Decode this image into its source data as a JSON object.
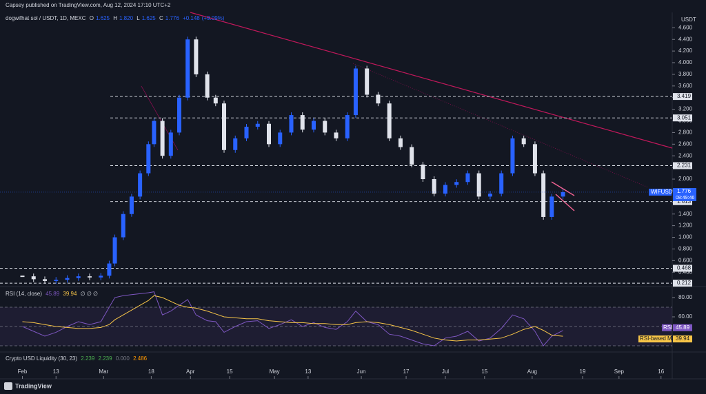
{
  "header": {
    "published": "Capsey published on TradingView.com, Aug 12, 2024 17:10 UTC+2"
  },
  "chart_data": [
    {
      "type": "candlestick",
      "title": "dogwifhat sol / USDT, 1D, MEXC",
      "currency": "USDT",
      "ohlc": {
        "names": [
          "O",
          "H",
          "L",
          "C"
        ],
        "values": [
          1.625,
          1.82,
          1.625,
          1.776
        ],
        "value_labels": [
          "1.625",
          "1.820",
          "1.625",
          "1.776"
        ]
      },
      "change": {
        "value": 0.148,
        "label": "+0.148"
      },
      "change_pct": {
        "value": 9.09,
        "label": "(+9.09%)"
      },
      "last": {
        "symbol": "WIFUSDT",
        "value": 1.776,
        "countdown": "08:49:46"
      },
      "up_color": "#2962ff",
      "down_color": "#e0e3eb",
      "x": [
        "2024-02-01",
        "2024-02-05",
        "2024-02-09",
        "2024-02-13",
        "2024-02-17",
        "2024-02-21",
        "2024-02-25",
        "2024-02-29",
        "2024-03-03",
        "2024-03-05",
        "2024-03-08",
        "2024-03-11",
        "2024-03-14",
        "2024-03-17",
        "2024-03-19",
        "2024-03-22",
        "2024-03-25",
        "2024-03-28",
        "2024-03-31",
        "2024-04-03",
        "2024-04-07",
        "2024-04-10",
        "2024-04-13",
        "2024-04-17",
        "2024-04-21",
        "2024-04-25",
        "2024-04-29",
        "2024-05-03",
        "2024-05-07",
        "2024-05-11",
        "2024-05-15",
        "2024-05-19",
        "2024-05-23",
        "2024-05-27",
        "2024-05-30",
        "2024-06-03",
        "2024-06-07",
        "2024-06-11",
        "2024-06-15",
        "2024-06-19",
        "2024-06-23",
        "2024-06-27",
        "2024-07-01",
        "2024-07-05",
        "2024-07-09",
        "2024-07-13",
        "2024-07-17",
        "2024-07-21",
        "2024-07-25",
        "2024-07-29",
        "2024-08-02",
        "2024-08-05",
        "2024-08-08",
        "2024-08-12"
      ],
      "values": [
        0.33,
        0.28,
        0.25,
        0.27,
        0.3,
        0.33,
        0.31,
        0.34,
        0.55,
        1.0,
        1.4,
        1.7,
        2.1,
        2.6,
        3.0,
        2.4,
        2.8,
        3.4,
        4.4,
        3.8,
        3.4,
        3.3,
        2.5,
        2.7,
        2.9,
        2.95,
        2.6,
        2.8,
        3.1,
        2.85,
        3.0,
        2.8,
        2.7,
        3.1,
        3.9,
        3.45,
        3.3,
        2.7,
        2.55,
        2.25,
        2.0,
        1.75,
        1.9,
        1.95,
        2.1,
        1.7,
        1.75,
        2.1,
        2.7,
        2.6,
        2.1,
        1.35,
        1.7,
        1.776
      ],
      "xlim": [
        "2024-01-24",
        "2024-09-20"
      ],
      "xticks": [
        {
          "value": "2024-02-01",
          "label": "Feb"
        },
        {
          "value": "2024-02-13",
          "label": "13"
        },
        {
          "value": "2024-03-01",
          "label": "Mar"
        },
        {
          "value": "2024-03-18",
          "label": "18"
        },
        {
          "value": "2024-04-01",
          "label": "Apr"
        },
        {
          "value": "2024-04-15",
          "label": "15"
        },
        {
          "value": "2024-05-01",
          "label": "May"
        },
        {
          "value": "2024-05-13",
          "label": "13"
        },
        {
          "value": "2024-06-01",
          "label": "Jun"
        },
        {
          "value": "2024-06-17",
          "label": "17"
        },
        {
          "value": "2024-07-01",
          "label": "Jul"
        },
        {
          "value": "2024-07-15",
          "label": "15"
        },
        {
          "value": "2024-08-01",
          "label": "Aug"
        },
        {
          "value": "2024-08-19",
          "label": "19"
        },
        {
          "value": "2024-09-01",
          "label": "Sep"
        },
        {
          "value": "2024-09-16",
          "label": "16"
        }
      ],
      "ylim": [
        0.166,
        4.864
      ],
      "yticks": [
        {
          "value": 0.4,
          "label": "0.400"
        },
        {
          "value": 0.6,
          "label": "0.600"
        },
        {
          "value": 0.8,
          "label": "0.800"
        },
        {
          "value": 1,
          "label": "1.000"
        },
        {
          "value": 1.2,
          "label": "1.200"
        },
        {
          "value": 1.4,
          "label": "1.400"
        },
        {
          "value": 1.6,
          "label": "1.600"
        },
        {
          "value": 1.8,
          "label": "1.800"
        },
        {
          "value": 2,
          "label": "2.000"
        },
        {
          "value": 2.2,
          "label": "2.200"
        },
        {
          "value": 2.4,
          "label": "2.400"
        },
        {
          "value": 2.6,
          "label": "2.600"
        },
        {
          "value": 2.8,
          "label": "2.800"
        },
        {
          "value": 3,
          "label": "3.000"
        },
        {
          "value": 3.2,
          "label": "3.200"
        },
        {
          "value": 3.4,
          "label": "3.400"
        },
        {
          "value": 3.6,
          "label": "3.600"
        },
        {
          "value": 3.8,
          "label": "3.800"
        },
        {
          "value": 4,
          "label": "4.000"
        },
        {
          "value": 4.2,
          "label": "4.200"
        },
        {
          "value": 4.4,
          "label": "4.400"
        },
        {
          "value": 4.6,
          "label": "4.600"
        }
      ],
      "levels": [
        3.419,
        3.051,
        2.231,
        1.613,
        0.468,
        0.212
      ]
    },
    {
      "type": "line",
      "title": "RSI (14, close)",
      "extra": "∅ ∅ ∅",
      "series": [
        {
          "name": "RSI",
          "color": "#7e57c2",
          "values": [
            50,
            45,
            40,
            44,
            50,
            55,
            52,
            55,
            70,
            80,
            82,
            83,
            84,
            85,
            86,
            62,
            66,
            72,
            78,
            62,
            56,
            55,
            44,
            50,
            55,
            56,
            48,
            52,
            57,
            50,
            54,
            49,
            47,
            55,
            66,
            55,
            52,
            42,
            40,
            36,
            32,
            30,
            38,
            40,
            45,
            35,
            38,
            48,
            62,
            58,
            45,
            30,
            40,
            45.89
          ]
        },
        {
          "name": "RSI-based MA",
          "color": "#f7c548",
          "values": [
            55,
            54,
            52,
            50,
            49,
            48,
            48,
            49,
            52,
            57,
            62,
            67,
            72,
            77,
            82,
            80,
            76,
            72,
            70,
            69,
            66,
            63,
            60,
            59,
            58,
            58,
            56,
            55,
            54,
            54,
            53,
            53,
            52,
            52,
            54,
            55,
            54,
            52,
            49,
            46,
            42,
            38,
            36,
            35,
            36,
            36,
            37,
            38,
            42,
            47,
            50,
            46,
            41,
            39.94
          ]
        }
      ],
      "ylim": [
        24.3,
        90
      ],
      "yticks": [
        {
          "value": 80,
          "label": "80.00"
        },
        {
          "value": 60,
          "label": "60.00"
        }
      ],
      "levels": [
        70,
        50,
        30
      ]
    }
  ],
  "liquidity": {
    "title": "Crypto USD Liquidity (30, 23)",
    "values": [
      2.239,
      2.239,
      0,
      2.486
    ],
    "value_labels": [
      "2.239",
      "2.239",
      "0.000",
      "2.486"
    ],
    "colors": [
      "#4caf50",
      "#4caf50",
      "#787b86",
      "#ff9800"
    ]
  },
  "footer": {
    "brand": "TradingView"
  }
}
